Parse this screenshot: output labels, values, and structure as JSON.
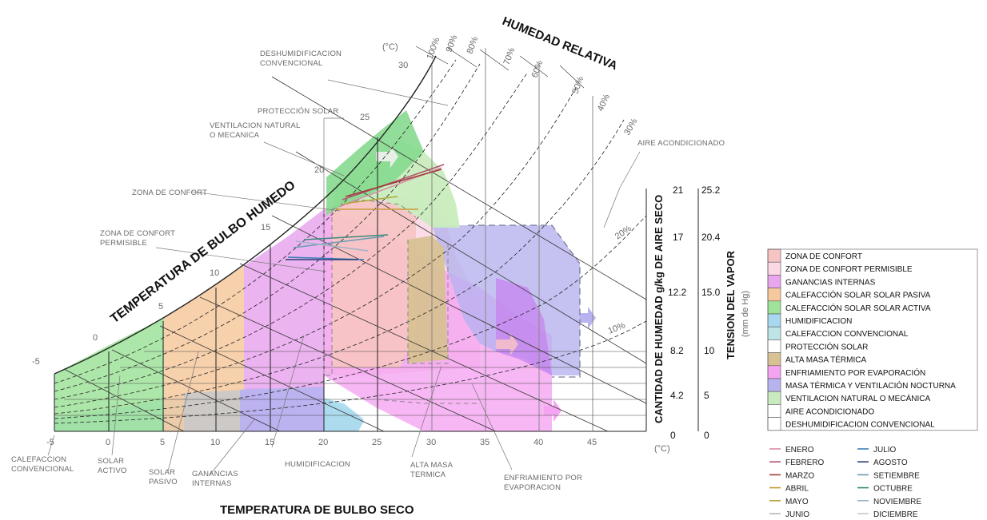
{
  "titles": {
    "wet_bulb": "TEMPERATURA DE BULBO HUMEDO",
    "relative_humidity": "HUMEDAD RELATIVA",
    "dry_bulb": "TEMPERATURA DE BULBO SECO",
    "humidity_ratio": "CANTIDAD DE HUMEDAD g/kg DE AIRE SECO",
    "vapor_pressure": "TENSION DEL VAPOR",
    "vapor_pressure_unit": "(mm de Hg)"
  },
  "axes": {
    "dry_bulb_ticks": [
      "-5",
      "0",
      "5",
      "10",
      "15",
      "20",
      "25",
      "30",
      "35",
      "40",
      "45"
    ],
    "dry_bulb_unit": "(°C)",
    "wet_bulb_unit": "(°C)",
    "wet_bulb_ticks": [
      "-5",
      "0",
      "5",
      "10",
      "15",
      "20",
      "25",
      "30"
    ],
    "humidity_ratio_ticks": [
      "0",
      "4.2",
      "8.2",
      "12.2",
      "17",
      "21"
    ],
    "vapor_pressure_ticks": [
      "0",
      "5",
      "10",
      "15.0",
      "20.4",
      "25.2"
    ],
    "rh_labels": [
      "100%",
      "90%",
      "80%",
      "70%",
      "60%",
      "50%",
      "40%",
      "30%",
      "20%",
      "10%"
    ]
  },
  "annotations": {
    "deshum": [
      "DESHUMIDIFICACION",
      "CONVENCIONAL"
    ],
    "proteccion": "PROTECCIÓN SOLAR",
    "ventilacion": [
      "VENTILACION NATURAL",
      "O MECANICA"
    ],
    "zona_confort": "ZONA DE CONFORT",
    "zona_permisible": [
      "ZONA DE CONFORT",
      "PERMISIBLE"
    ],
    "aire": "AIRE ACONDICIONADO",
    "calef_conv": [
      "CALEFACCION",
      "CONVENCIONAL"
    ],
    "solar_activo": [
      "SOLAR",
      "ACTIVO"
    ],
    "solar_pasivo": [
      "SOLAR",
      "PASIVO"
    ],
    "ganancias": [
      "GANANCIAS",
      "INTERNAS"
    ],
    "humidificacion": "HUMIDIFICACION",
    "alta_masa": [
      "ALTA MASA",
      "TERMICA"
    ],
    "enfriamiento": [
      "ENFRIAMIENTO POR",
      "EVAPORACION"
    ]
  },
  "legend": [
    {
      "label": "ZONA DE CONFORT",
      "color": "#f7c4c4"
    },
    {
      "label": "ZONA DE CONFORT PERMISIBLE",
      "color": "#fbd8e4"
    },
    {
      "label": "GANANCIAS INTERNAS",
      "color": "#e9a6ef"
    },
    {
      "label": "CALEFACCIÓN SOLAR SOLAR PASIVA",
      "color": "#f6c99d"
    },
    {
      "label": "CALEFACCIÓN SOLAR SOLAR ACTIVA",
      "color": "#9fe29a"
    },
    {
      "label": "HUMIDIFICACION",
      "color": "#a7d8ef"
    },
    {
      "label": "CALEFACCION CONVENCIONAL",
      "color": "#bfe4e8"
    },
    {
      "label": "PROTECCIÓN SOLAR",
      "color": "#ffffff"
    },
    {
      "label": "ALTA MASA TÉRMICA",
      "color": "#d8c194"
    },
    {
      "label": "ENFRIAMIENTO POR EVAPORACIÓN",
      "color": "#f5a4f1"
    },
    {
      "label": "MASA TÉRMICA Y VENTILACIÓN NOCTURNA",
      "color": "#b7b3ef"
    },
    {
      "label": "VENTILACION NATURAL O MECÁNICA",
      "color": "#c8ecbd"
    },
    {
      "label": "AIRE ACONDICIONADO",
      "color": "#ffffff"
    },
    {
      "label": "DESHUMIDIFICACION CONVENCIONAL",
      "color": "#ffffff"
    }
  ],
  "months": [
    {
      "label": "ENERO",
      "color": "#d98aa8"
    },
    {
      "label": "FEBRERO",
      "color": "#b3506a"
    },
    {
      "label": "MARZO",
      "color": "#a33a3a"
    },
    {
      "label": "ABRIL",
      "color": "#c99a3e"
    },
    {
      "label": "MAYO",
      "color": "#b3a73a"
    },
    {
      "label": "JUNIO",
      "color": "#b9b9b9"
    },
    {
      "label": "JULIO",
      "color": "#3a7fb5"
    },
    {
      "label": "AGOSTO",
      "color": "#2a3a78"
    },
    {
      "label": "SETIEMBRE",
      "color": "#6a9ab2"
    },
    {
      "label": "OCTUBRE",
      "color": "#3a8a7a"
    },
    {
      "label": "NOVIEMBRE",
      "color": "#9fb4c7"
    },
    {
      "label": "DICIEMBRE",
      "color": "#c9c9c9"
    }
  ]
}
